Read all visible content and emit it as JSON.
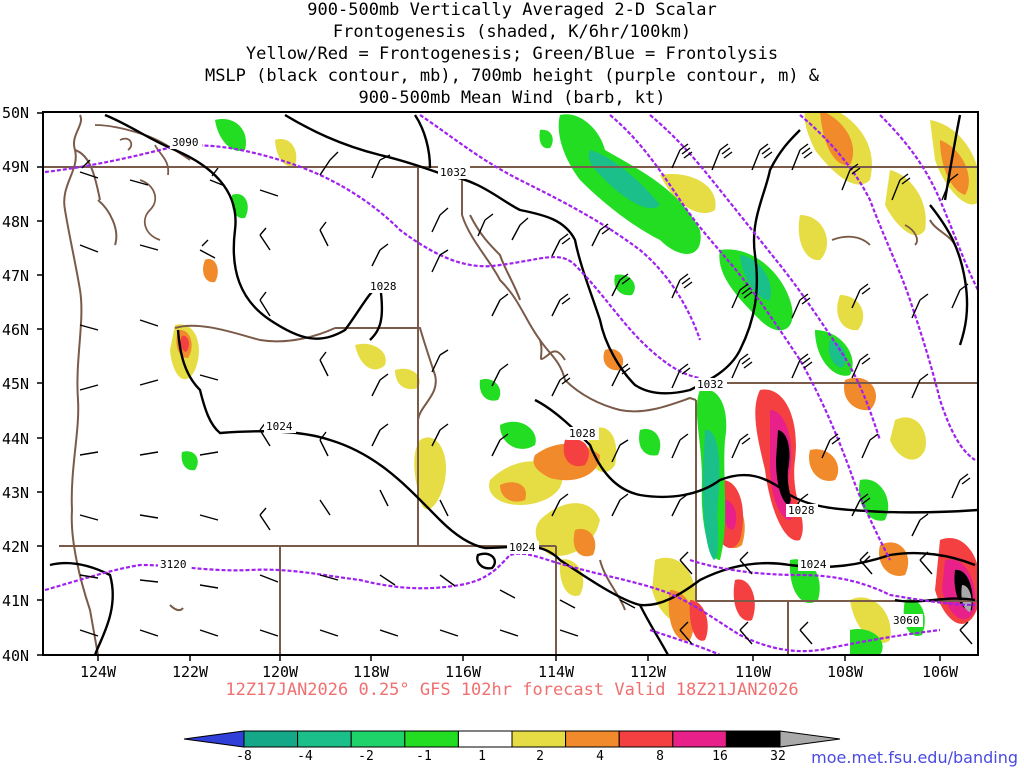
{
  "title_lines": [
    "900-500mb Vertically Averaged 2-D Scalar",
    "Frontogenesis (shaded, K/6hr/100km)",
    "Yellow/Red = Frontogenesis;  Green/Blue = Frontolysis",
    "MSLP (black contour, mb), 700mb height (purple contour, m) &",
    "900-500mb Mean Wind (barb, kt)"
  ],
  "run_label": "12Z17JAN2026 0.25° GFS 102hr forecast Valid 18Z21JAN2026",
  "credit": "moe.met.fsu.edu/banding",
  "lat_labels": [
    "50N",
    "49N",
    "48N",
    "47N",
    "46N",
    "45N",
    "44N",
    "43N",
    "42N",
    "41N",
    "40N"
  ],
  "lon_labels": [
    "124W",
    "122W",
    "120W",
    "118W",
    "116W",
    "114W",
    "112W",
    "110W",
    "108W",
    "106W"
  ],
  "mslp_labels": [
    "1032",
    "1028",
    "1024",
    "1032",
    "1028",
    "1028",
    "1024",
    "1024"
  ],
  "height_labels": [
    "3090",
    "3120",
    "3060"
  ],
  "colorbar": {
    "ticks": [
      "-8",
      "-4",
      "-2",
      "-1",
      "1",
      "2",
      "4",
      "8",
      "16",
      "32"
    ],
    "colors": [
      "#2f3fd8",
      "#14a888",
      "#1abf8a",
      "#1ed36a",
      "#22dd22",
      "#ffffff",
      "#e6dd44",
      "#f08a2a",
      "#f44040",
      "#e8208a",
      "#000000",
      "#a9a9a9"
    ]
  },
  "colors": {
    "state_border": "#7a5a48",
    "mslp": "#000000",
    "height": "#a020f0",
    "frontogenesis_yellow": "#e6dd44",
    "frontogenesis_orange": "#f08a2a",
    "frontogenesis_red": "#f44040",
    "frontolysis_green": "#22dd22",
    "frontolysis_teal": "#1abf8a"
  }
}
